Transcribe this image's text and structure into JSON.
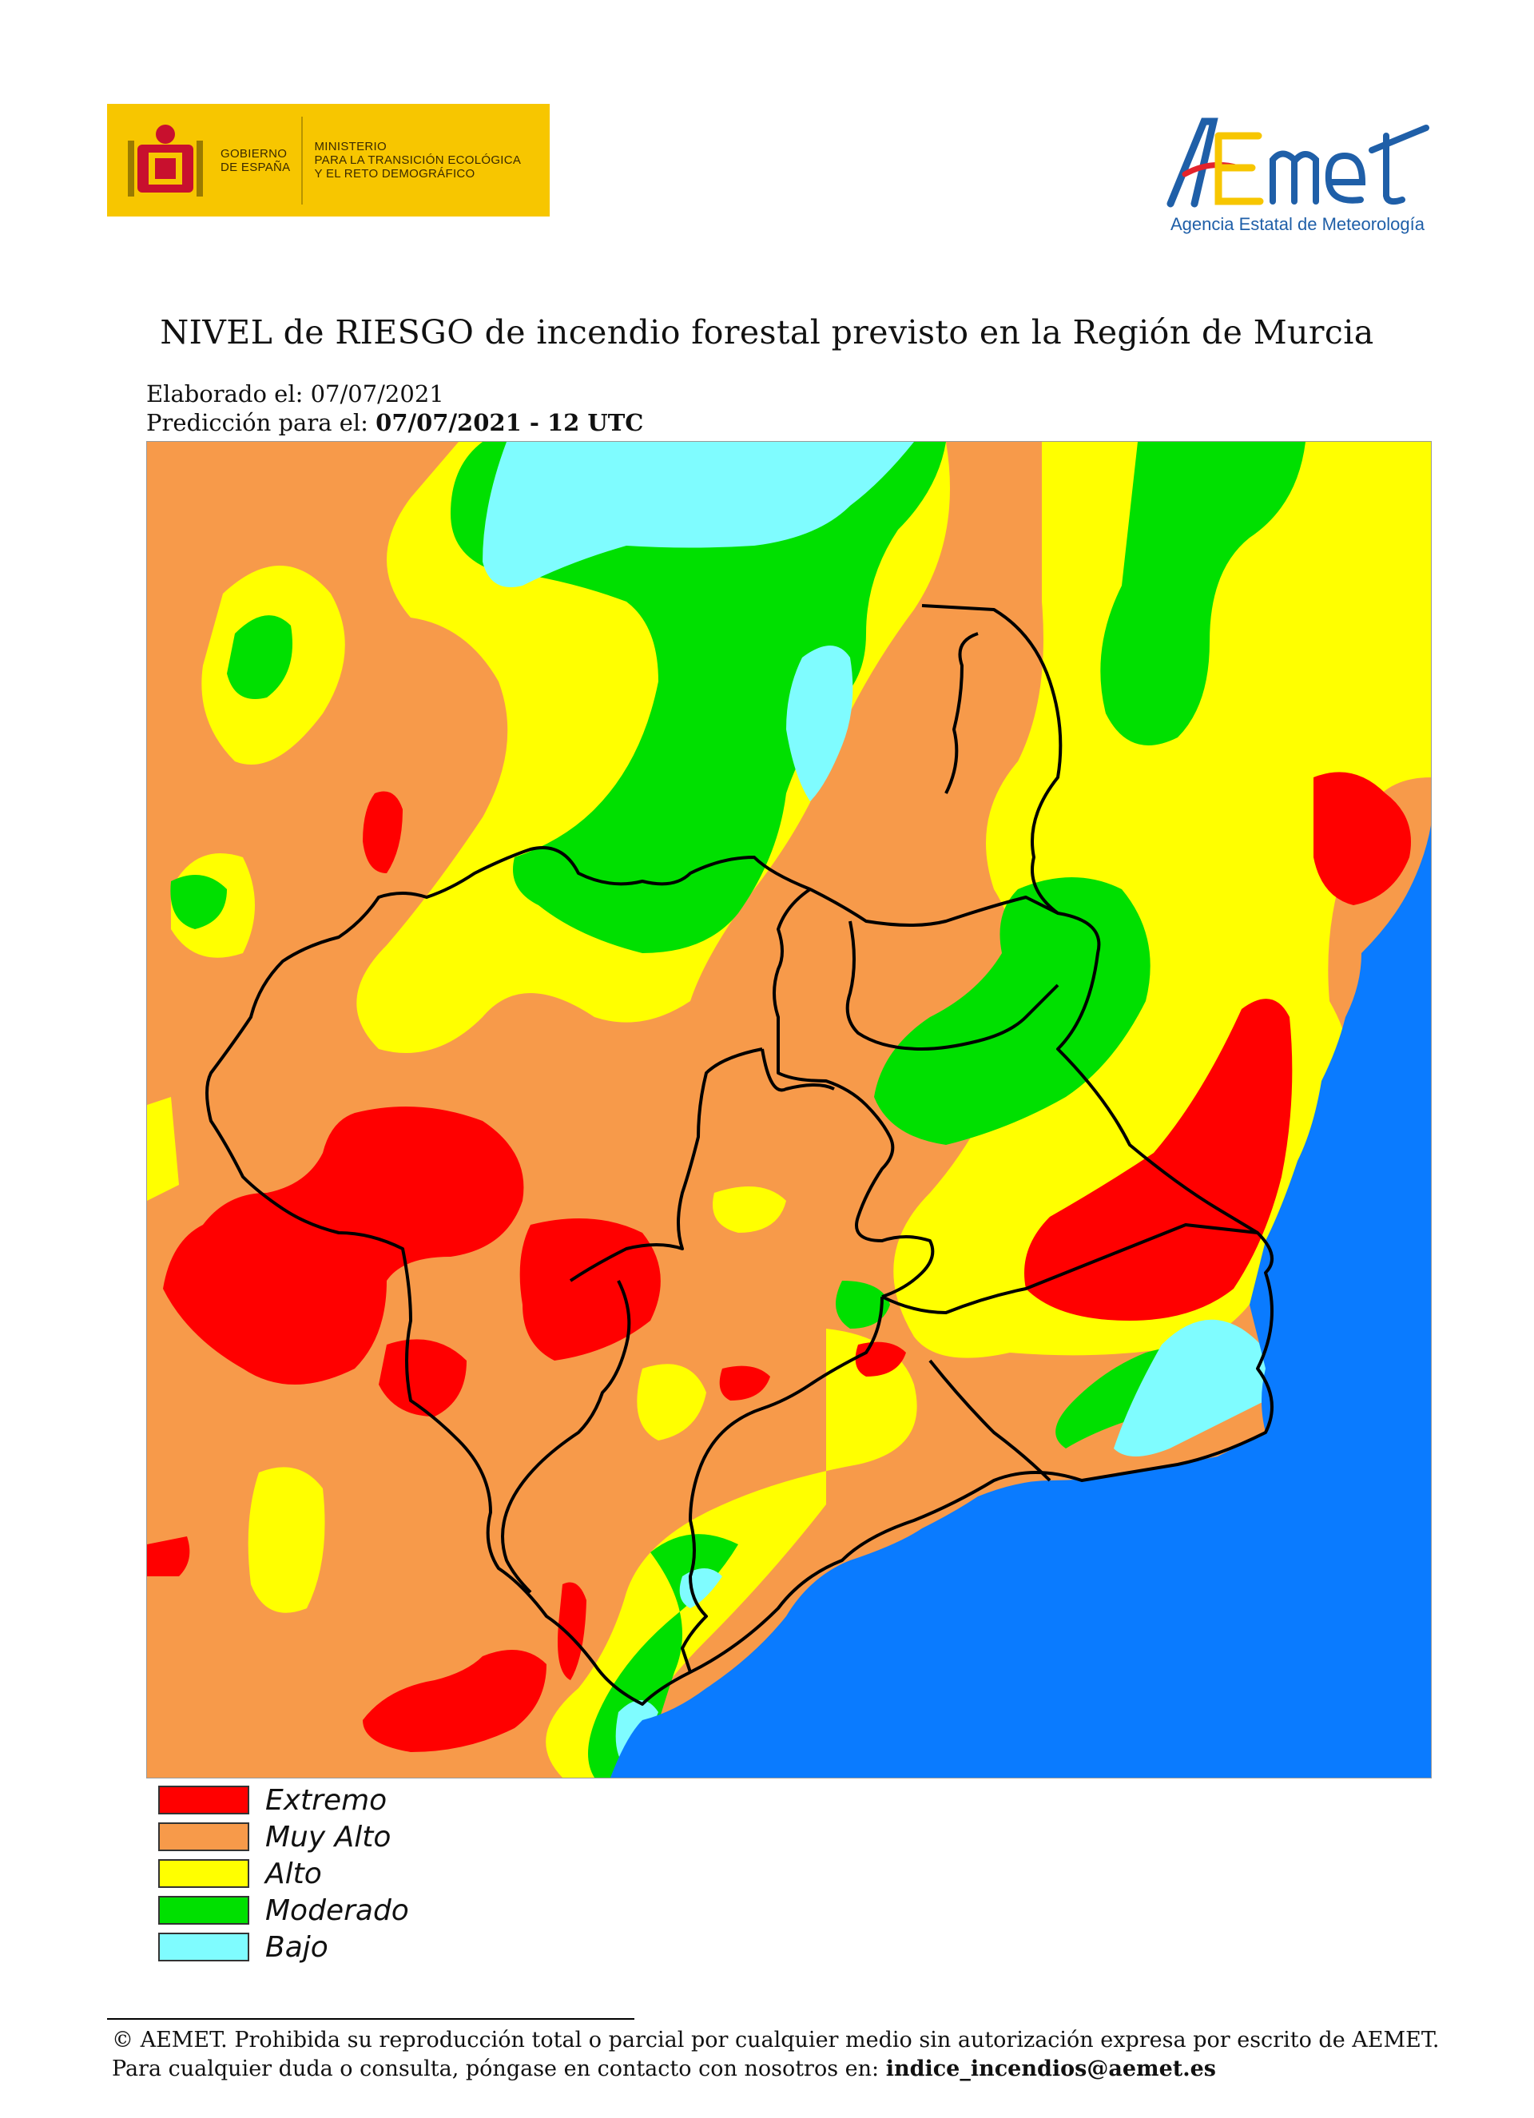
{
  "header": {
    "gov_logo": {
      "line1": "GOBIERNO",
      "line2": "DE ESPAÑA",
      "ministry_line1": "MINISTERIO",
      "ministry_line2": "PARA LA TRANSICIÓN ECOLÓGICA",
      "ministry_line3": "Y EL RETO DEMOGRÁFICO",
      "background_color": "#f7c600"
    },
    "aemet_logo": {
      "wordmark": "AEMet",
      "subtitle": "Agencia Estatal de Meteorología"
    }
  },
  "title": "NIVEL de RIESGO de incendio forestal previsto en la Región de Murcia",
  "elaborado": {
    "label": "Elaborado el:",
    "value": "07/07/2021"
  },
  "prediccion": {
    "label": "Predicción para el:",
    "value": "07/07/2021 - 12 UTC"
  },
  "legend": [
    {
      "label": "Extremo",
      "color": "#ff0000"
    },
    {
      "label": "Muy Alto",
      "color": "#f79a4a"
    },
    {
      "label": "Alto",
      "color": "#ffff00"
    },
    {
      "label": "Moderado",
      "color": "#00e000"
    },
    {
      "label": "Bajo",
      "color": "#7ffcff"
    }
  ],
  "sea_color": "#0a7bff",
  "footer": {
    "line1": "© AEMET. Prohibida su reproducción total o parcial por cualquier medio sin autorización expresa por escrito de AEMET.",
    "line2_prefix": "Para cualquier duda o consulta, póngase en contacto con nosotros en:",
    "email": "indice_incendios@aemet.es"
  }
}
